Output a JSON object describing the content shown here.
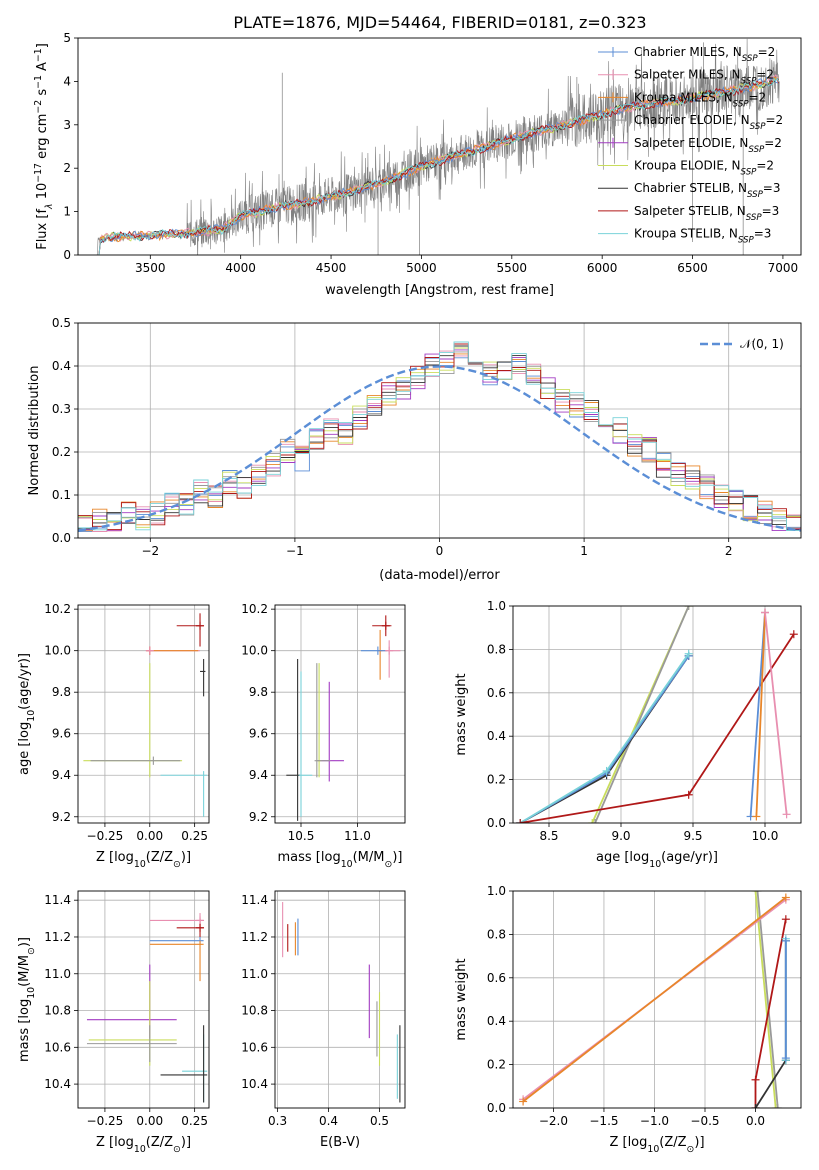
{
  "title": "PLATE=1876, MJD=54464, FIBERID=0181, z=0.323",
  "colors": {
    "chabrier_miles": "#5b8ed6",
    "salpeter_miles": "#e88fb0",
    "kroupa_miles": "#e8862a",
    "chabrier_elodie": "#999999",
    "salpeter_elodie": "#a23bc2",
    "kroupa_elodie": "#c9dd5c",
    "chabrier_stelib": "#333333",
    "salpeter_stelib": "#b01818",
    "kroupa_stelib": "#79d2d9",
    "data": "#808080",
    "normal": "#5b8ed6"
  },
  "chart_data": [
    {
      "type": "line",
      "name": "spectrum",
      "xlabel": "wavelength [Angstrom, rest frame]",
      "ylabel": "Flux [f$_\\lambda$ $10^{-17}$ erg cm$^{-2}$ s$^{-1}$ A$^{-1}$]",
      "ylabel_main": "Flux [f",
      "ylabel_sub": "λ",
      "ylabel_rest": " 10",
      "ylabel_exp": "−17",
      "ylabel_units": " erg cm",
      "ylabel_exp2": "−2",
      "ylabel_units2": " s",
      "ylabel_exp3": "−1",
      "ylabel_units3": " A",
      "ylabel_exp4": "−1",
      "ylabel_close": "]",
      "xlim": [
        3100,
        7100
      ],
      "ylim": [
        0,
        5
      ],
      "xticks": [
        3500,
        4000,
        4500,
        5000,
        5500,
        6000,
        6500,
        7000
      ],
      "yticks": [
        0,
        1,
        2,
        3,
        4,
        5
      ],
      "continuum": {
        "x": [
          3200,
          3300,
          3500,
          3700,
          3900,
          4000,
          4200,
          4400,
          4600,
          4800,
          5000,
          5200,
          5400,
          5600,
          5800,
          6000,
          6200,
          6400,
          6600,
          6800,
          7000
        ],
        "y": [
          0.35,
          0.42,
          0.45,
          0.5,
          0.6,
          0.9,
          1.1,
          1.25,
          1.45,
          1.7,
          2.05,
          2.3,
          2.55,
          2.8,
          3.0,
          3.25,
          3.45,
          3.55,
          3.7,
          3.85,
          4.1
        ]
      },
      "legend": [
        {
          "label": "Chabrier MILES, N",
          "sub": "SSP",
          "suffix": "=2",
          "color_key": "chabrier_miles"
        },
        {
          "label": "Salpeter MILES, N",
          "sub": "SSP",
          "suffix": "=2",
          "color_key": "salpeter_miles"
        },
        {
          "label": "Kroupa MILES, N",
          "sub": "SSP",
          "suffix": "=2",
          "color_key": "kroupa_miles"
        },
        {
          "label": "Chabrier ELODIE, N",
          "sub": "SSP",
          "suffix": "=2",
          "color_key": "chabrier_elodie"
        },
        {
          "label": "Salpeter ELODIE, N",
          "sub": "SSP",
          "suffix": "=2",
          "color_key": "salpeter_elodie"
        },
        {
          "label": "Kroupa ELODIE, N",
          "sub": "SSP",
          "suffix": "=2",
          "color_key": "kroupa_elodie"
        },
        {
          "label": "Chabrier STELIB, N",
          "sub": "SSP",
          "suffix": "=3",
          "color_key": "chabrier_stelib"
        },
        {
          "label": "Salpeter STELIB, N",
          "sub": "SSP",
          "suffix": "=3",
          "color_key": "salpeter_stelib"
        },
        {
          "label": "Kroupa STELIB, N",
          "sub": "SSP",
          "suffix": "=3",
          "color_key": "kroupa_stelib"
        }
      ],
      "legend_position": "upper right"
    },
    {
      "type": "histogram",
      "name": "residuals",
      "xlabel": "(data-model)/error",
      "ylabel": "Normed distribution",
      "xlim": [
        -2.5,
        2.5
      ],
      "ylim": [
        0,
        0.5
      ],
      "xticks": [
        -2,
        -1,
        0,
        1,
        2
      ],
      "yticks": [
        0,
        0.1,
        0.2,
        0.3,
        0.4,
        0.5
      ],
      "grid": true,
      "bin_width": 0.1,
      "bin_start": -2.5,
      "reference": [
        0.025,
        0.04,
        0.03,
        0.055,
        0.045,
        0.06,
        0.075,
        0.08,
        0.11,
        0.1,
        0.13,
        0.115,
        0.15,
        0.17,
        0.2,
        0.185,
        0.225,
        0.255,
        0.24,
        0.28,
        0.31,
        0.335,
        0.345,
        0.37,
        0.4,
        0.41,
        0.43,
        0.39,
        0.38,
        0.395,
        0.41,
        0.375,
        0.35,
        0.32,
        0.31,
        0.29,
        0.27,
        0.25,
        0.22,
        0.205,
        0.17,
        0.15,
        0.14,
        0.12,
        0.1,
        0.085,
        0.07,
        0.06,
        0.045,
        0.035,
        0.03
      ],
      "series_colors": [
        "chabrier_miles",
        "salpeter_miles",
        "kroupa_miles",
        "chabrier_elodie",
        "salpeter_elodie",
        "kroupa_elodie",
        "chabrier_stelib",
        "salpeter_stelib",
        "kroupa_stelib"
      ],
      "legend": [
        {
          "label": "𝒩(0, 1)",
          "color_key": "normal",
          "style": "dashed"
        }
      ],
      "legend_position": "upper right"
    },
    {
      "type": "errorbar",
      "name": "age-vs-Z",
      "xlabel_main": "Z [log",
      "xlabel_sub": "10",
      "xlabel_rest": "(Z/Z",
      "xlabel_sub2": "⊙",
      "xlabel_close": ")]",
      "ylabel_main": "age  [log",
      "ylabel_sub": "10",
      "ylabel_rest": "(age/yr)]",
      "xlim": [
        -0.4,
        0.33
      ],
      "ylim": [
        9.17,
        10.22
      ],
      "xticks": [
        -0.25,
        0.0,
        0.25
      ],
      "xtick_labels": [
        "−0.25",
        "0.00",
        "0.25"
      ],
      "yticks": [
        9.2,
        9.4,
        9.6,
        9.8,
        10.0,
        10.2
      ],
      "grid": true,
      "points": [
        {
          "color_key": "salpeter_stelib",
          "x": 0.28,
          "y": 10.12,
          "xerr": [
            0.13,
            0.02
          ],
          "yerr": [
            0.1,
            0.06
          ]
        },
        {
          "color_key": "salpeter_miles",
          "x": 0.0,
          "y": 10.0,
          "xerr": [
            0.02,
            0.28
          ],
          "yerr": [
            0.02,
            0.02
          ]
        },
        {
          "color_key": "kroupa_miles",
          "x": 0.0,
          "y": 10.0,
          "xerr": [
            0.02,
            0.27
          ],
          "yerr": [
            0.02,
            0.02
          ]
        },
        {
          "color_key": "chabrier_stelib",
          "x": 0.3,
          "y": 9.9,
          "xerr": [
            0.02,
            0.01
          ],
          "yerr": [
            0.12,
            0.06
          ]
        },
        {
          "color_key": "kroupa_elodie",
          "x": 0.0,
          "y": 9.47,
          "xerr": [
            0.37,
            0.18
          ],
          "yerr": [
            0.08,
            0.47
          ]
        },
        {
          "color_key": "kroupa_stelib",
          "x": 0.3,
          "y": 9.4,
          "xerr": [
            0.24,
            0.02
          ],
          "yerr": [
            0.2,
            0.02
          ]
        },
        {
          "color_key": "chabrier_elodie",
          "x": 0.02,
          "y": 9.47,
          "xerr": [
            0.35,
            0.15
          ],
          "yerr": [
            0.02,
            0.02
          ]
        }
      ]
    },
    {
      "type": "errorbar",
      "name": "age-vs-mass",
      "xlabel_main": "mass [log",
      "xlabel_sub": "10",
      "xlabel_rest": "(M/M",
      "xlabel_sub2": "⊙",
      "xlabel_close": ")]",
      "xlim": [
        10.27,
        11.42
      ],
      "ylim": [
        9.17,
        10.22
      ],
      "xticks": [
        10.5,
        11.0
      ],
      "xtick_labels": [
        "10.5",
        "11.0"
      ],
      "yticks": [
        9.2,
        9.4,
        9.6,
        9.8,
        10.0,
        10.2
      ],
      "grid": true,
      "points": [
        {
          "color_key": "salpeter_stelib",
          "x": 11.25,
          "y": 10.12,
          "xerr": [
            0.12,
            0.05
          ],
          "yerr": [
            0.05,
            0.05
          ]
        },
        {
          "color_key": "salpeter_miles",
          "x": 11.28,
          "y": 10.0,
          "xerr": [
            0.1,
            0.1
          ],
          "yerr": [
            0.13,
            0.05
          ]
        },
        {
          "color_key": "kroupa_miles",
          "x": 11.2,
          "y": 10.0,
          "xerr": [
            0.02,
            0.02
          ],
          "yerr": [
            0.14,
            0.1
          ]
        },
        {
          "color_key": "chabrier_miles",
          "x": 11.18,
          "y": 10.0,
          "xerr": [
            0.15,
            0.08
          ],
          "yerr": [
            0.02,
            0.02
          ]
        },
        {
          "color_key": "salpeter_elodie",
          "x": 10.75,
          "y": 9.47,
          "xerr": [
            0.1,
            0.13
          ],
          "yerr": [
            0.1,
            0.38
          ]
        },
        {
          "color_key": "kroupa_elodie",
          "x": 10.66,
          "y": 9.47,
          "xerr": [
            0.02,
            0.02
          ],
          "yerr": [
            0.08,
            0.47
          ]
        },
        {
          "color_key": "chabrier_stelib",
          "x": 10.47,
          "y": 9.4,
          "xerr": [
            0.1,
            0.02
          ],
          "yerr": [
            0.22,
            0.56
          ]
        },
        {
          "color_key": "kroupa_stelib",
          "x": 10.5,
          "y": 9.4,
          "xerr": [
            0.02,
            0.1
          ],
          "yerr": [
            0.2,
            0.5
          ]
        },
        {
          "color_key": "chabrier_elodie",
          "x": 10.64,
          "y": 9.47,
          "xerr": [
            0.02,
            0.12
          ],
          "yerr": [
            0.08,
            0.47
          ]
        }
      ]
    },
    {
      "type": "line",
      "name": "weight-vs-age",
      "xlabel_main": "age  [log",
      "xlabel_sub": "10",
      "xlabel_rest": "(age/yr)]",
      "ylabel": "mass weight",
      "xlim": [
        8.25,
        10.25
      ],
      "ylim": [
        0,
        1
      ],
      "xticks": [
        8.5,
        9.0,
        9.5,
        10.0
      ],
      "xtick_labels": [
        "8.5",
        "9.0",
        "9.5",
        "10.0"
      ],
      "yticks": [
        0,
        0.2,
        0.4,
        0.6,
        0.8,
        1.0
      ],
      "grid": true,
      "series": [
        {
          "color_key": "kroupa_elodie",
          "x": [
            8.8,
            9.47
          ],
          "y": [
            0,
            1.0
          ]
        },
        {
          "color_key": "chabrier_elodie",
          "x": [
            8.82,
            9.47
          ],
          "y": [
            0,
            1.0
          ]
        },
        {
          "color_key": "chabrier_stelib",
          "x": [
            8.3,
            8.9,
            9.47
          ],
          "y": [
            0.0,
            0.22,
            0.77
          ]
        },
        {
          "color_key": "chabrier_miles",
          "x": [
            8.3,
            8.9,
            9.47
          ],
          "y": [
            0.0,
            0.23,
            0.77
          ]
        },
        {
          "color_key": "kroupa_stelib",
          "x": [
            8.3,
            8.9,
            9.47
          ],
          "y": [
            0.0,
            0.24,
            0.78
          ]
        },
        {
          "color_key": "salpeter_stelib",
          "x": [
            8.3,
            9.47,
            10.2
          ],
          "y": [
            0.0,
            0.13,
            0.87
          ]
        },
        {
          "color_key": "chabrier_miles",
          "x": [
            9.9,
            10.0
          ],
          "y": [
            0.03,
            0.97
          ]
        },
        {
          "color_key": "kroupa_miles",
          "x": [
            9.94,
            10.0
          ],
          "y": [
            0.03,
            0.97
          ]
        },
        {
          "color_key": "salpeter_miles",
          "x": [
            10.0,
            10.15
          ],
          "y": [
            0.97,
            0.04
          ]
        }
      ]
    },
    {
      "type": "errorbar",
      "name": "mass-vs-Z",
      "xlabel_main": "Z [log",
      "xlabel_sub": "10",
      "xlabel_rest": "(Z/Z",
      "xlabel_sub2": "⊙",
      "xlabel_close": ")]",
      "ylabel_main": "mass [log",
      "ylabel_sub": "10",
      "ylabel_rest": "(M/M",
      "ylabel_sub2": "⊙",
      "ylabel_close": ")]",
      "xlim": [
        -0.4,
        0.33
      ],
      "ylim": [
        10.27,
        11.45
      ],
      "xticks": [
        -0.25,
        0.0,
        0.25
      ],
      "xtick_labels": [
        "−0.25",
        "0.00",
        "0.25"
      ],
      "yticks": [
        10.4,
        10.6,
        10.8,
        11.0,
        11.2,
        11.4
      ],
      "grid": true,
      "points": [
        {
          "color_key": "salpeter_miles",
          "x": 0.28,
          "y": 11.29,
          "xerr": [
            0.28,
            0.02
          ],
          "yerr": [
            0.02,
            0.04
          ]
        },
        {
          "color_key": "salpeter_stelib",
          "x": 0.28,
          "y": 11.25,
          "xerr": [
            0.13,
            0.02
          ],
          "yerr": [
            0.05,
            0.05
          ]
        },
        {
          "color_key": "chabrier_miles",
          "x": 0.28,
          "y": 11.18,
          "xerr": [
            0.28,
            0.02
          ],
          "yerr": [
            0.02,
            0.02
          ]
        },
        {
          "color_key": "kroupa_miles",
          "x": 0.28,
          "y": 11.16,
          "xerr": [
            0.28,
            0.02
          ],
          "yerr": [
            0.2,
            0.02
          ]
        },
        {
          "color_key": "salpeter_elodie",
          "x": 0.0,
          "y": 10.75,
          "xerr": [
            0.35,
            0.15
          ],
          "yerr": [
            0.1,
            0.3
          ]
        },
        {
          "color_key": "kroupa_elodie",
          "x": 0.0,
          "y": 10.64,
          "xerr": [
            0.34,
            0.15
          ],
          "yerr": [
            0.14,
            0.32
          ]
        },
        {
          "color_key": "chabrier_elodie",
          "x": 0.0,
          "y": 10.62,
          "xerr": [
            0.35,
            0.15
          ],
          "yerr": [
            0.1,
            0.1
          ]
        },
        {
          "color_key": "kroupa_stelib",
          "x": 0.3,
          "y": 10.47,
          "xerr": [
            0.12,
            0.02
          ],
          "yerr": [
            0.17,
            0.2
          ]
        },
        {
          "color_key": "chabrier_stelib",
          "x": 0.3,
          "y": 10.45,
          "xerr": [
            0.24,
            0.02
          ],
          "yerr": [
            0.15,
            0.27
          ]
        }
      ]
    },
    {
      "type": "errorbar",
      "name": "mass-vs-ebv",
      "xlabel": "E(B-V)",
      "xlim": [
        0.295,
        0.55
      ],
      "ylim": [
        10.27,
        11.45
      ],
      "xticks": [
        0.3,
        0.4,
        0.5
      ],
      "xtick_labels": [
        "0.3",
        "0.4",
        "0.5"
      ],
      "yticks": [
        10.4,
        10.6,
        10.8,
        11.0,
        11.2,
        11.4
      ],
      "grid": true,
      "points": [
        {
          "color_key": "salpeter_miles",
          "x": 0.31,
          "y": 11.29,
          "yerr": [
            0.2,
            0.1
          ]
        },
        {
          "color_key": "salpeter_stelib",
          "x": 0.32,
          "y": 11.2,
          "yerr": [
            0.08,
            0.07
          ]
        },
        {
          "color_key": "kroupa_miles",
          "x": 0.335,
          "y": 11.2,
          "yerr": [
            0.1,
            0.08
          ]
        },
        {
          "color_key": "chabrier_miles",
          "x": 0.34,
          "y": 11.2,
          "yerr": [
            0.1,
            0.1
          ]
        },
        {
          "color_key": "salpeter_elodie",
          "x": 0.48,
          "y": 10.75,
          "yerr": [
            0.1,
            0.3
          ]
        },
        {
          "color_key": "chabrier_elodie",
          "x": 0.495,
          "y": 10.7,
          "yerr": [
            0.15,
            0.15
          ]
        },
        {
          "color_key": "kroupa_elodie",
          "x": 0.5,
          "y": 10.75,
          "yerr": [
            0.25,
            0.15
          ]
        },
        {
          "color_key": "kroupa_stelib",
          "x": 0.535,
          "y": 10.47,
          "yerr": [
            0.15,
            0.2
          ]
        },
        {
          "color_key": "chabrier_stelib",
          "x": 0.54,
          "y": 10.5,
          "yerr": [
            0.2,
            0.22
          ]
        }
      ]
    },
    {
      "type": "line",
      "name": "weight-vs-Z",
      "xlabel_main": "Z [log",
      "xlabel_sub": "10",
      "xlabel_rest": "(Z/Z",
      "xlabel_sub2": "⊙",
      "xlabel_close": ")]",
      "ylabel": "mass weight",
      "xlim": [
        -2.4,
        0.45
      ],
      "ylim": [
        0,
        1
      ],
      "xticks": [
        -2.0,
        -1.5,
        -1.0,
        -0.5,
        0.0
      ],
      "xtick_labels": [
        "−2.0",
        "−1.5",
        "−1.0",
        "−0.5",
        "0.0"
      ],
      "yticks": [
        0,
        0.2,
        0.4,
        0.6,
        0.8,
        1.0
      ],
      "grid": true,
      "series": [
        {
          "color_key": "kroupa_elodie",
          "x": [
            0.0,
            0.2
          ],
          "y": [
            1.0,
            0.0
          ]
        },
        {
          "color_key": "chabrier_elodie",
          "x": [
            0.02,
            0.22
          ],
          "y": [
            1.0,
            0.0
          ]
        },
        {
          "color_key": "salpeter_miles",
          "x": [
            -2.3,
            0.3
          ],
          "y": [
            0.04,
            0.96
          ]
        },
        {
          "color_key": "kroupa_miles",
          "x": [
            -2.3,
            0.3
          ],
          "y": [
            0.03,
            0.97
          ]
        },
        {
          "color_key": "salpeter_stelib",
          "x": [
            0.0,
            0.0,
            0.3
          ],
          "y": [
            0.0,
            0.13,
            0.87
          ]
        },
        {
          "color_key": "chabrier_stelib",
          "x": [
            0.0,
            0.3,
            0.3
          ],
          "y": [
            0.0,
            0.22,
            0.77
          ]
        },
        {
          "color_key": "kroupa_stelib",
          "x": [
            0.3,
            0.3
          ],
          "y": [
            0.22,
            0.78
          ]
        },
        {
          "color_key": "chabrier_miles",
          "x": [
            0.3,
            0.3
          ],
          "y": [
            0.23,
            0.77
          ]
        }
      ]
    }
  ]
}
